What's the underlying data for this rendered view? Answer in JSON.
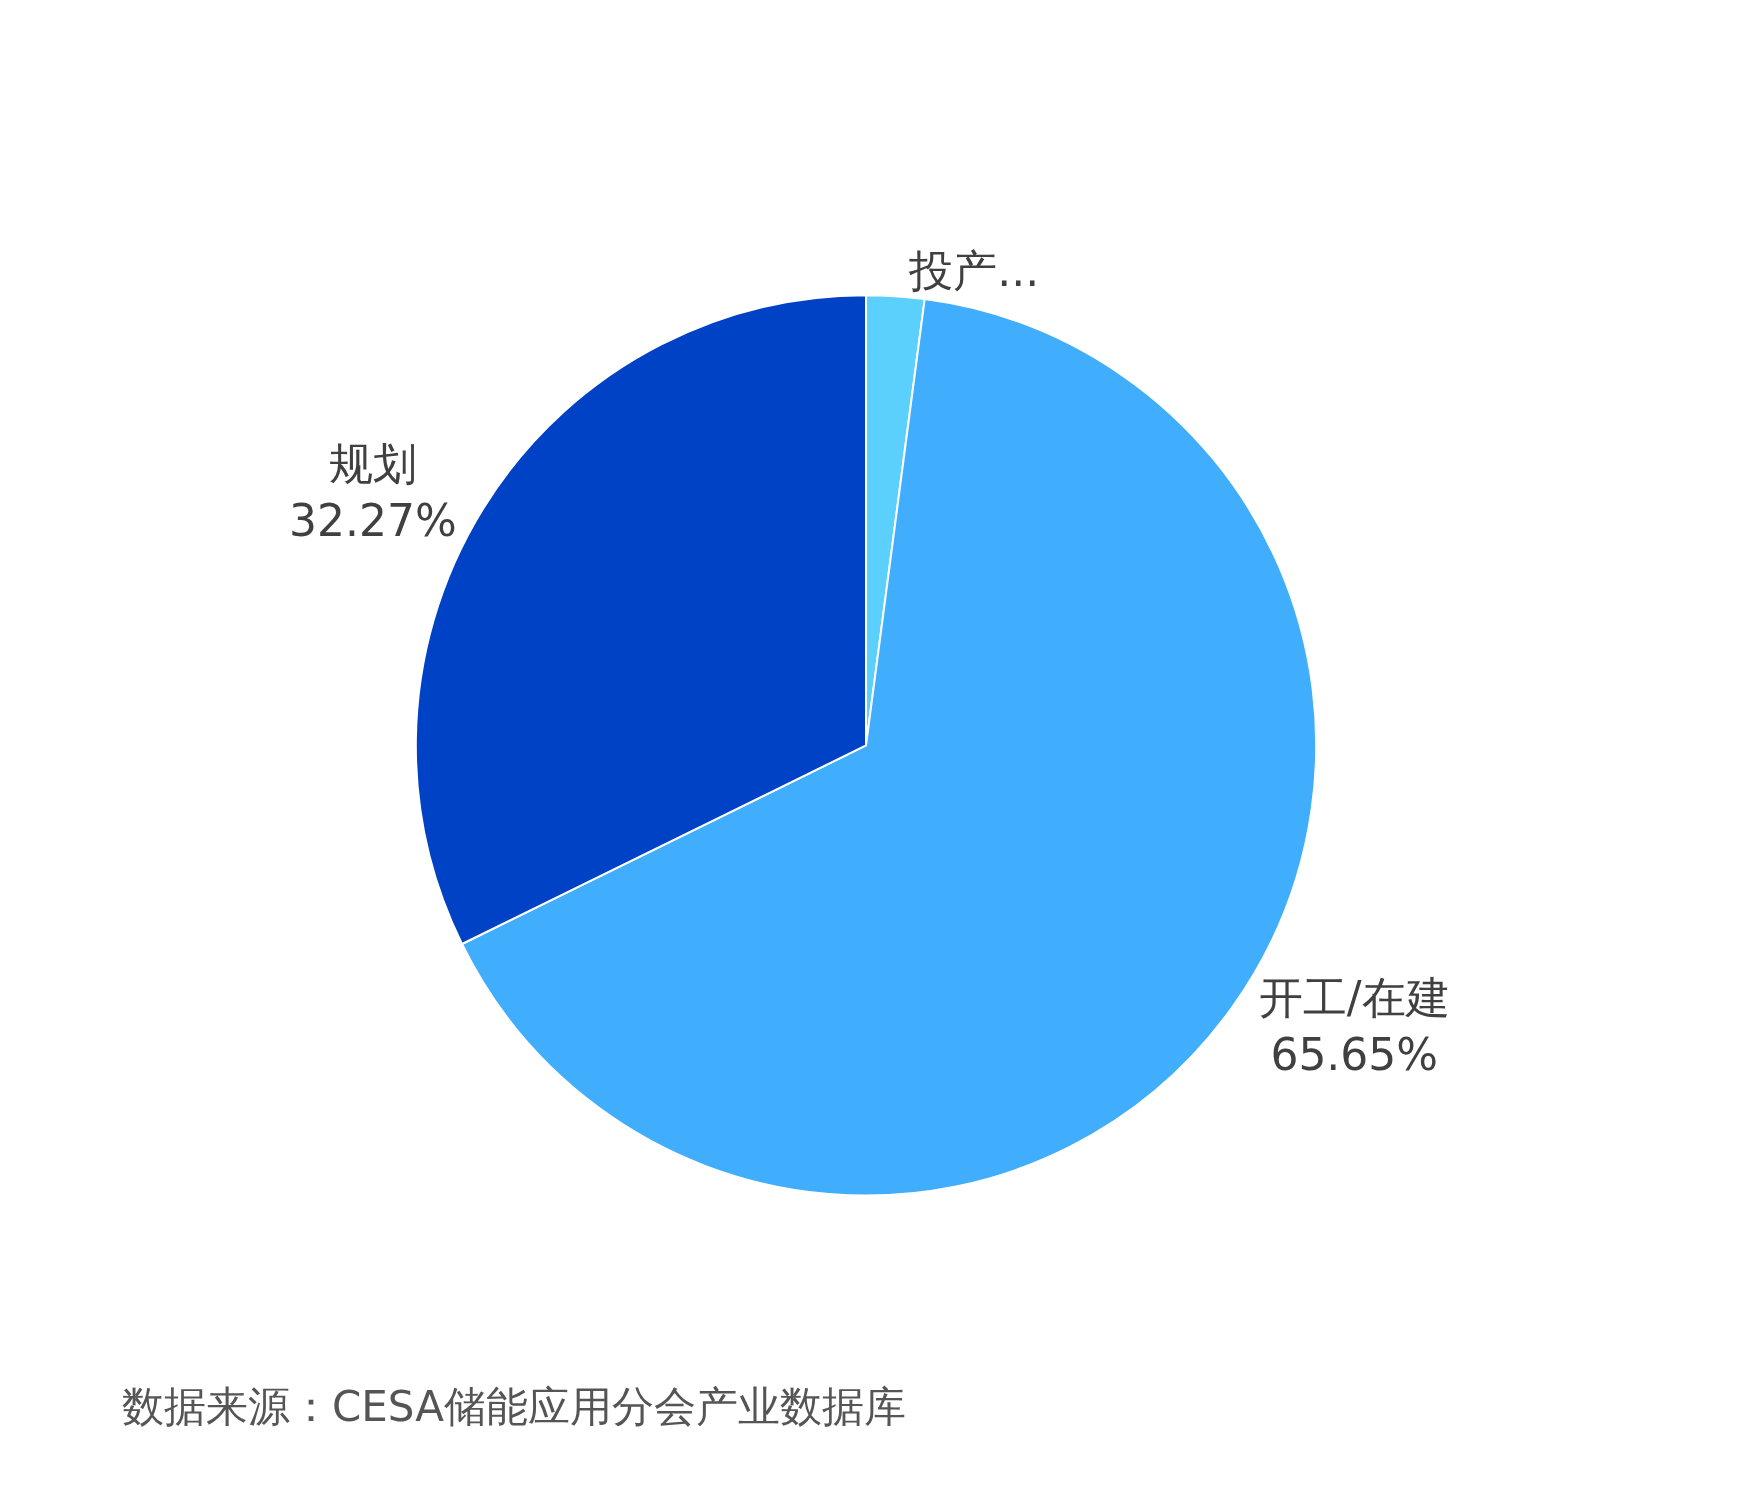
{
  "chart_data": {
    "type": "pie",
    "categories": [
      "投产...",
      "开工/在建",
      "规划"
    ],
    "values": [
      2.08,
      65.65,
      32.27
    ],
    "value_labels": [
      null,
      "65.65%",
      "32.27%"
    ],
    "colors": [
      "#5bd0fc",
      "#40aefc",
      "#0042c6"
    ],
    "legend": false,
    "annotations": [
      "数据来源：CESA储能应用分会产业数据库"
    ]
  }
}
